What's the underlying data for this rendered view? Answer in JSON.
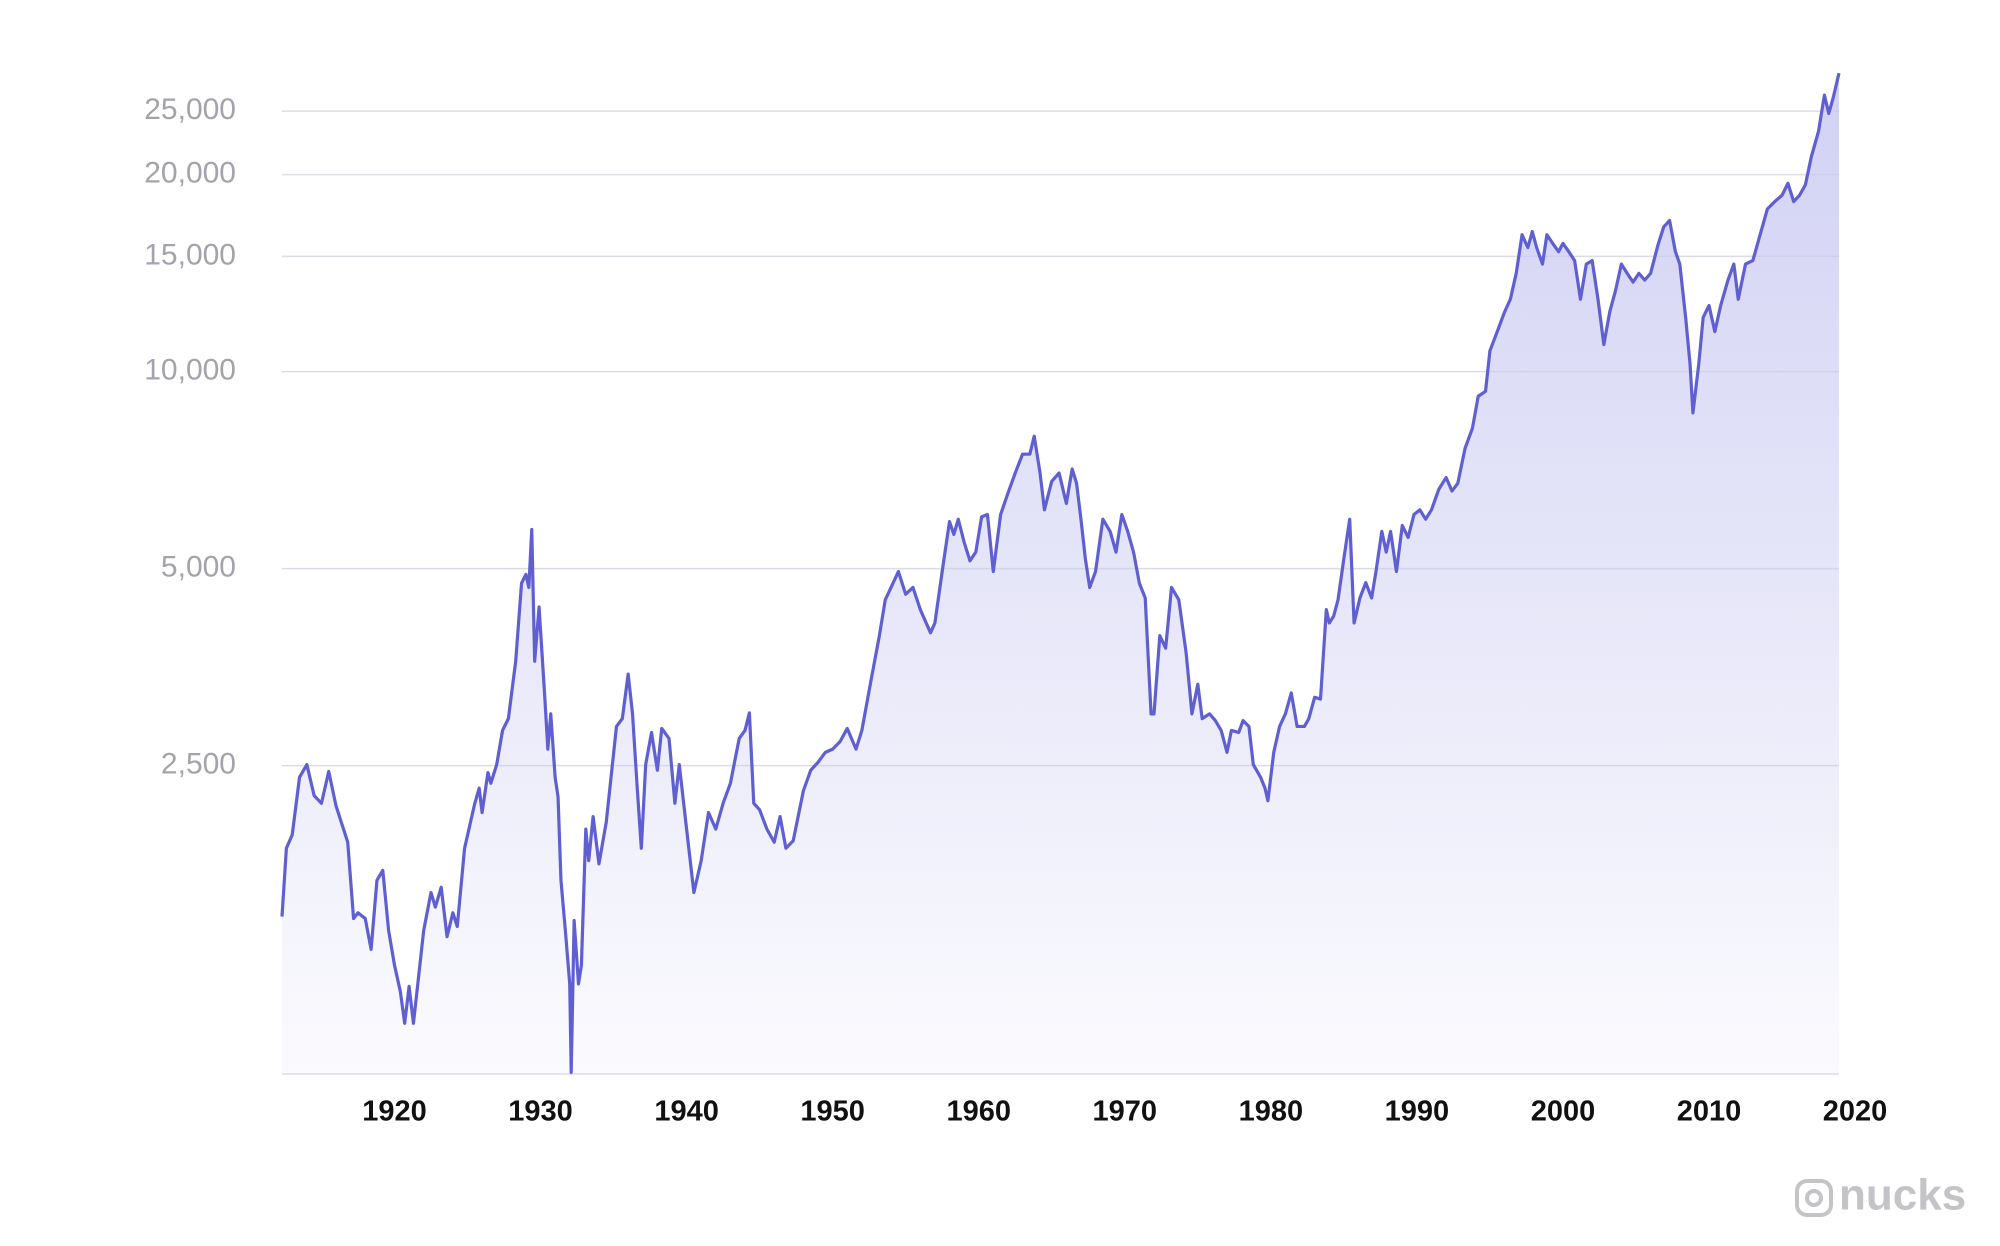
{
  "chart_data": {
    "type": "area",
    "log_scale": "y",
    "grid": true,
    "color": "#5f5fd2",
    "fill_color": "#c9c9f2",
    "watermark": "nucks",
    "xlim": [
      1912.3,
      2018.9
    ],
    "ylim": [
      845,
      29000
    ],
    "xticks": [
      1920,
      1930,
      1940,
      1950,
      1960,
      1970,
      1980,
      1990,
      2000,
      2010,
      2020
    ],
    "yticks": [
      {
        "value": 2500,
        "label": "2,500"
      },
      {
        "value": 5000,
        "label": "5,000"
      },
      {
        "value": 10000,
        "label": "10,000"
      },
      {
        "value": 15000,
        "label": "15,000"
      },
      {
        "value": 20000,
        "label": "20,000"
      },
      {
        "value": 25000,
        "label": "25,000"
      }
    ],
    "x": [
      1912.3,
      1912.6,
      1913,
      1913.5,
      1914,
      1914.5,
      1915,
      1915.5,
      1916,
      1916.8,
      1917.2,
      1917.5,
      1918,
      1918.4,
      1918.8,
      1919.2,
      1919.6,
      1920,
      1920.4,
      1920.7,
      1921,
      1921.3,
      1922,
      1922.5,
      1922.8,
      1923.2,
      1923.6,
      1924,
      1924.3,
      1924.8,
      1925.5,
      1925.8,
      1926,
      1926.4,
      1926.6,
      1927,
      1927.4,
      1927.8,
      1928.3,
      1928.7,
      1929,
      1929.2,
      1929.4,
      1929.6,
      1929.9,
      1930.3,
      1930.5,
      1930.7,
      1931,
      1931.2,
      1931.4,
      1931.7,
      1932,
      1932.1,
      1932.3,
      1932.6,
      1932.8,
      1933.1,
      1933.3,
      1933.6,
      1934,
      1934.5,
      1935.2,
      1935.6,
      1936,
      1936.3,
      1936.6,
      1936.9,
      1937.2,
      1937.6,
      1938,
      1938.3,
      1938.8,
      1939.2,
      1939.5,
      1940,
      1940.5,
      1941,
      1941.5,
      1942,
      1942.5,
      1943,
      1943.6,
      1944,
      1944.3,
      1944.6,
      1945,
      1945.5,
      1946,
      1946.4,
      1946.8,
      1947.3,
      1948,
      1948.5,
      1949,
      1949.5,
      1950,
      1950.5,
      1951,
      1951.6,
      1952,
      1952.6,
      1953.2,
      1953.6,
      1954,
      1954.5,
      1955,
      1955.5,
      1956,
      1956.7,
      1957,
      1957.5,
      1958,
      1958.3,
      1958.6,
      1959,
      1959.4,
      1959.8,
      1960.2,
      1960.6,
      1961,
      1961.5,
      1962,
      1962.5,
      1963,
      1963.5,
      1963.8,
      1964.2,
      1964.5,
      1965,
      1965.5,
      1966,
      1966.4,
      1966.7,
      1967,
      1967.3,
      1967.6,
      1968,
      1968.5,
      1969,
      1969.4,
      1969.8,
      1970.2,
      1970.6,
      1971,
      1971.4,
      1971.8,
      1972,
      1972.4,
      1972.8,
      1973.2,
      1973.7,
      1974.2,
      1974.6,
      1975,
      1975.3,
      1975.8,
      1976.2,
      1976.6,
      1977,
      1977.3,
      1977.8,
      1978.1,
      1978.5,
      1978.8,
      1979.3,
      1979.6,
      1979.8,
      1980.2,
      1980.6,
      1981,
      1981.4,
      1981.8,
      1982.3,
      1982.6,
      1983,
      1983.4,
      1983.8,
      1984,
      1984.3,
      1984.6,
      1985,
      1985.4,
      1985.7,
      1986.1,
      1986.5,
      1986.9,
      1987.2,
      1987.6,
      1987.9,
      1988.2,
      1988.6,
      1989,
      1989.4,
      1989.8,
      1990.2,
      1990.6,
      1991,
      1991.5,
      1992,
      1992.4,
      1992.8,
      1993.3,
      1993.8,
      1994.2,
      1994.7,
      1995,
      1995.5,
      1996,
      1996.4,
      1996.8,
      1997.2,
      1997.6,
      1997.9,
      1998.2,
      1998.6,
      1998.9,
      1999.3,
      1999.7,
      2000,
      2000.4,
      2000.8,
      2001.2,
      2001.6,
      2002,
      2002.4,
      2002.8,
      2003.2,
      2003.6,
      2004,
      2004.4,
      2004.8,
      2005.2,
      2005.6,
      2006,
      2006.5,
      2006.9,
      2007.3,
      2007.7,
      2008,
      2008.4,
      2008.7,
      2008.9,
      2009.3,
      2009.6,
      2010,
      2010.4,
      2010.8,
      2011.3,
      2011.7,
      2012,
      2012.5,
      2013,
      2013.5,
      2014,
      2014.5,
      2015,
      2015.4,
      2015.8,
      2016.2,
      2016.6,
      2017,
      2017.5,
      2017.9,
      2018.2,
      2018.5,
      2018.9
    ],
    "values": [
      1470,
      1870,
      1960,
      2400,
      2510,
      2250,
      2190,
      2450,
      2170,
      1910,
      1460,
      1490,
      1460,
      1310,
      1670,
      1730,
      1400,
      1240,
      1130,
      1010,
      1150,
      1010,
      1400,
      1600,
      1520,
      1630,
      1370,
      1490,
      1420,
      1870,
      2190,
      2310,
      2120,
      2440,
      2350,
      2510,
      2830,
      2950,
      3610,
      4750,
      4900,
      4680,
      5740,
      3610,
      4370,
      3160,
      2650,
      3000,
      2400,
      2240,
      1670,
      1400,
      1160,
      850,
      1450,
      1160,
      1240,
      2000,
      1790,
      2090,
      1770,
      2050,
      2870,
      2950,
      3450,
      3000,
      2350,
      1870,
      2510,
      2810,
      2460,
      2850,
      2750,
      2190,
      2510,
      2000,
      1600,
      1790,
      2120,
      2000,
      2190,
      2350,
      2750,
      2830,
      3010,
      2190,
      2140,
      2000,
      1910,
      2090,
      1870,
      1920,
      2290,
      2460,
      2530,
      2620,
      2650,
      2720,
      2850,
      2650,
      2830,
      3350,
      3950,
      4480,
      4680,
      4950,
      4570,
      4680,
      4330,
      3990,
      4130,
      4950,
      5900,
      5640,
      5950,
      5490,
      5140,
      5300,
      6000,
      6050,
      4950,
      6050,
      6520,
      7000,
      7480,
      7480,
      7970,
      7000,
      6150,
      6800,
      7000,
      6290,
      7100,
      6750,
      5950,
      5180,
      4680,
      4950,
      5950,
      5700,
      5300,
      6050,
      5700,
      5300,
      4750,
      4510,
      3000,
      3000,
      3950,
      3780,
      4680,
      4480,
      3720,
      3000,
      3330,
      2950,
      3000,
      2930,
      2830,
      2620,
      2830,
      2810,
      2930,
      2870,
      2510,
      2400,
      2310,
      2210,
      2620,
      2870,
      3000,
      3230,
      2870,
      2870,
      2950,
      3180,
      3160,
      4330,
      4130,
      4230,
      4480,
      5180,
      5950,
      4130,
      4510,
      4760,
      4510,
      4950,
      5700,
      5300,
      5700,
      4950,
      5820,
      5580,
      6050,
      6150,
      5950,
      6150,
      6610,
      6890,
      6570,
      6750,
      7640,
      8190,
      9170,
      9330,
      10760,
      11510,
      12330,
      12900,
      14130,
      16190,
      15470,
      16370,
      15470,
      14600,
      16190,
      15700,
      15250,
      15700,
      15250,
      14780,
      12900,
      14600,
      14780,
      12900,
      11000,
      12330,
      13300,
      14600,
      14130,
      13700,
      14130,
      13800,
      14130,
      15600,
      16640,
      17020,
      15250,
      14600,
      12100,
      10280,
      8650,
      10280,
      12100,
      12620,
      11510,
      12620,
      13800,
      14600,
      12900,
      14600,
      14780,
      16190,
      17730,
      18190,
      18600,
      19400,
      18190,
      18600,
      19300,
      21270,
      23300,
      26450,
      24800,
      26200,
      28580
    ]
  }
}
